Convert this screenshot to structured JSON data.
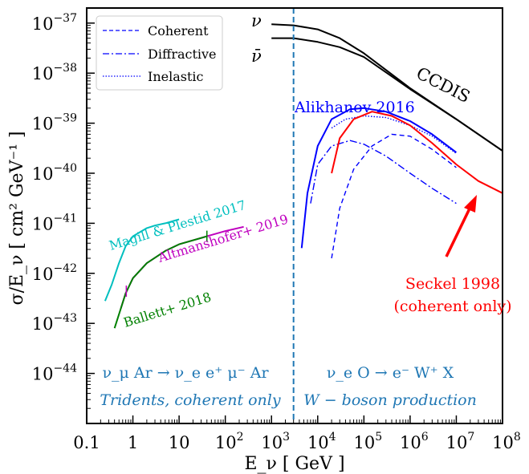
{
  "chart_data": {
    "type": "line",
    "xlabel": "E_ν [ GeV ]",
    "ylabel": "σ/E_ν [ cm² GeV⁻¹ ]",
    "xscale": "log",
    "yscale": "log",
    "xlim": [
      0.1,
      100000000
    ],
    "ylim": [
      1e-45,
      2e-37
    ],
    "x_ticks": [
      "0.1",
      "1",
      "10",
      "10^2",
      "10^3",
      "10^4",
      "10^5",
      "10^6",
      "10^7",
      "10^8"
    ],
    "y_ticks": [
      "10^-37",
      "10^-38",
      "10^-39",
      "10^-40",
      "10^-41",
      "10^-42",
      "10^-43",
      "10^-44"
    ],
    "legend": {
      "placement": "top-left",
      "entries": [
        {
          "label": "Coherent",
          "style": "dashed",
          "color": "#0000ff"
        },
        {
          "label": "Diffractive",
          "style": "dashdot",
          "color": "#0000ff"
        },
        {
          "label": "Inelastic",
          "style": "dotted",
          "color": "#0000ff"
        }
      ]
    },
    "divider_x": 3000,
    "series": [
      {
        "name": "ν",
        "label": "ν",
        "color": "#000000",
        "style": "solid",
        "points": [
          [
            1000,
            9.5e-38
          ],
          [
            3000,
            9e-38
          ],
          [
            10000,
            7.5e-38
          ],
          [
            30000,
            5e-38
          ],
          [
            100000,
            2.5e-38
          ],
          [
            1000000,
            5e-39
          ],
          [
            10000000,
            1.2e-39
          ],
          [
            100000000,
            2.8e-40
          ]
        ]
      },
      {
        "name": "ν̄",
        "label": "ν̄",
        "color": "#000000",
        "style": "solid",
        "points": [
          [
            1000,
            5e-38
          ],
          [
            3000,
            5e-38
          ],
          [
            10000,
            4.2e-38
          ],
          [
            30000,
            3.3e-38
          ],
          [
            100000,
            2.1e-38
          ],
          [
            1000000,
            4.8e-39
          ],
          [
            10000000,
            1.2e-39
          ],
          [
            100000000,
            2.8e-40
          ]
        ]
      },
      {
        "name": "Alikhanov 2016 total",
        "color": "#0000ff",
        "style": "solid",
        "points": [
          [
            4500,
            3.2e-42
          ],
          [
            6000,
            4e-41
          ],
          [
            10000,
            3.5e-40
          ],
          [
            20000,
            1.2e-39
          ],
          [
            50000,
            1.9e-39
          ],
          [
            100000,
            2e-39
          ],
          [
            300000,
            1.7e-39
          ],
          [
            1000000,
            1.1e-39
          ],
          [
            3000000,
            6e-40
          ],
          [
            10000000,
            2.6e-40
          ]
        ]
      },
      {
        "name": "Alikhanov 2016 inelastic",
        "color": "#0000ff",
        "style": "dotted",
        "points": [
          [
            20000,
            8e-40
          ],
          [
            40000,
            1.2e-39
          ],
          [
            100000,
            1.4e-39
          ],
          [
            300000,
            1.3e-39
          ],
          [
            1000000,
            9e-40
          ],
          [
            3000000,
            5.5e-40
          ],
          [
            10000000,
            2.5e-40
          ]
        ]
      },
      {
        "name": "Alikhanov 2016 coherent",
        "color": "#0000ff",
        "style": "dashed",
        "points": [
          [
            20000,
            2e-42
          ],
          [
            30000,
            2e-41
          ],
          [
            60000,
            1.2e-40
          ],
          [
            150000,
            3.5e-40
          ],
          [
            400000,
            6e-40
          ],
          [
            1000000,
            5.5e-40
          ],
          [
            3000000,
            3e-40
          ],
          [
            10000000,
            1.3e-40
          ]
        ]
      },
      {
        "name": "Alikhanov 2016 diffractive",
        "color": "#0000ff",
        "style": "dashdot",
        "points": [
          [
            7000,
            2.5e-41
          ],
          [
            10000,
            1.5e-40
          ],
          [
            20000,
            3.5e-40
          ],
          [
            50000,
            4.5e-40
          ],
          [
            100000,
            3.8e-40
          ],
          [
            300000,
            2.2e-40
          ],
          [
            1000000,
            1e-40
          ],
          [
            3000000,
            5e-41
          ],
          [
            10000000,
            2.5e-41
          ]
        ]
      },
      {
        "name": "Seckel 1998 (coherent only)",
        "label": "Seckel 1998\n(coherent only)",
        "color": "#ff0000",
        "style": "solid",
        "points": [
          [
            20000,
            1e-40
          ],
          [
            30000,
            5e-40
          ],
          [
            60000,
            1.2e-39
          ],
          [
            150000,
            1.7e-39
          ],
          [
            400000,
            1.4e-39
          ],
          [
            1000000,
            9e-40
          ],
          [
            3000000,
            4e-40
          ],
          [
            10000000,
            1.5e-40
          ],
          [
            30000000,
            7e-41
          ],
          [
            100000000,
            4e-41
          ]
        ]
      },
      {
        "name": "Magill & Plestid 2017",
        "label": "Magill & Plestid 2017",
        "color": "#00bfbf",
        "style": "solid",
        "points": [
          [
            0.25,
            2.8e-43
          ],
          [
            0.35,
            6e-43
          ],
          [
            0.5,
            1.6e-42
          ],
          [
            0.7,
            3.5e-42
          ],
          [
            1,
            5.5e-42
          ],
          [
            2,
            8e-42
          ],
          [
            3,
            9e-42
          ],
          [
            5,
            1e-41
          ],
          [
            10,
            1.2e-41
          ]
        ]
      },
      {
        "name": "Altmanshofer+ 2019",
        "label": "Altmanshofer+ 2019",
        "color": "#bf00bf",
        "style": "solid",
        "points": [
          [
            0.55,
            2e-43
          ],
          [
            0.7,
            4e-43
          ],
          [
            1,
            8e-43
          ],
          [
            2,
            1.6e-42
          ],
          [
            5,
            2.8e-42
          ],
          [
            10,
            3.8e-42
          ],
          [
            40,
            5.5e-42
          ],
          [
            100,
            7e-42
          ],
          [
            250,
            8.5e-42
          ]
        ]
      },
      {
        "name": "Ballett+ 2018",
        "label": "Ballett+ 2018",
        "color": "#008000",
        "style": "solid",
        "points": [
          [
            0.4,
            8e-44
          ],
          [
            0.55,
            2e-43
          ],
          [
            0.7,
            4e-43
          ],
          [
            1,
            8e-43
          ],
          [
            2,
            1.6e-42
          ],
          [
            5,
            2.8e-42
          ],
          [
            10,
            3.8e-42
          ],
          [
            40,
            5.5e-42
          ]
        ]
      }
    ],
    "annotations": [
      {
        "text": "CCDIS",
        "color": "#000000"
      },
      {
        "text": "Alikhanov 2016",
        "color": "#0000ff"
      },
      {
        "text": "ν_μ Ar → ν_e e⁺ μ⁻ Ar",
        "color": "#1f77b4"
      },
      {
        "text": "Tridents, coherent only",
        "color": "#1f77b4"
      },
      {
        "text": "ν_e O → e⁻ W⁺ X",
        "color": "#1f77b4"
      },
      {
        "text": "W − boson production",
        "color": "#1f77b4"
      }
    ]
  }
}
